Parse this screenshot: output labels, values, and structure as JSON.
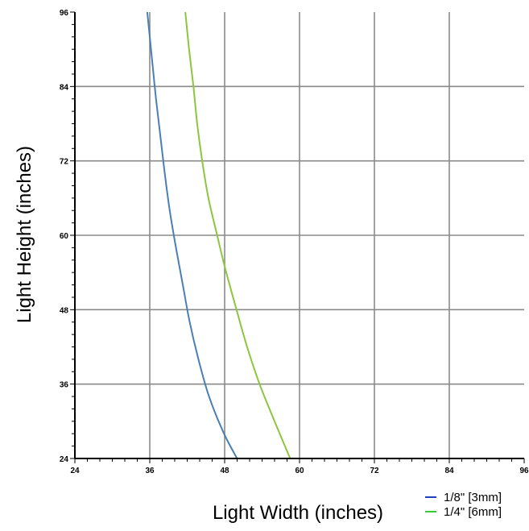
{
  "chart_data": {
    "type": "line",
    "title": "",
    "xlabel": "Light Width (inches)",
    "ylabel": "Light Height (inches)",
    "xlim": [
      24,
      96
    ],
    "ylim": [
      24,
      96
    ],
    "x_ticks": [
      "24",
      "36",
      "48",
      "60",
      "72",
      "84",
      "96"
    ],
    "y_ticks": [
      "24",
      "36",
      "48",
      "60",
      "72",
      "84",
      "96"
    ],
    "grid": true,
    "legend_position": "bottom-right",
    "series": [
      {
        "name": "1/8\" [3mm]",
        "color": "#4a7fb5",
        "legend_color": "#1f3fbf",
        "points": [
          [
            50.0,
            24
          ],
          [
            47.9,
            28
          ],
          [
            45.5,
            34
          ],
          [
            43.8,
            40
          ],
          [
            42.4,
            46
          ],
          [
            41.3,
            52
          ],
          [
            40.2,
            58
          ],
          [
            39.2,
            64
          ],
          [
            38.4,
            70
          ],
          [
            37.7,
            76
          ],
          [
            37.0,
            82
          ],
          [
            36.4,
            88
          ],
          [
            36.0,
            92
          ],
          [
            35.6,
            96
          ]
        ]
      },
      {
        "name": "1/4\" [6mm]",
        "color": "#8cc63e",
        "legend_color": "#33cc33",
        "points": [
          [
            58.5,
            24
          ],
          [
            56.0,
            30
          ],
          [
            53.6,
            36
          ],
          [
            51.6,
            42
          ],
          [
            49.9,
            48
          ],
          [
            48.0,
            55
          ],
          [
            46.8,
            60
          ],
          [
            45.4,
            66
          ],
          [
            44.4,
            72
          ],
          [
            43.6,
            78
          ],
          [
            43.0,
            84
          ],
          [
            42.3,
            90
          ],
          [
            41.7,
            96
          ]
        ]
      }
    ]
  }
}
